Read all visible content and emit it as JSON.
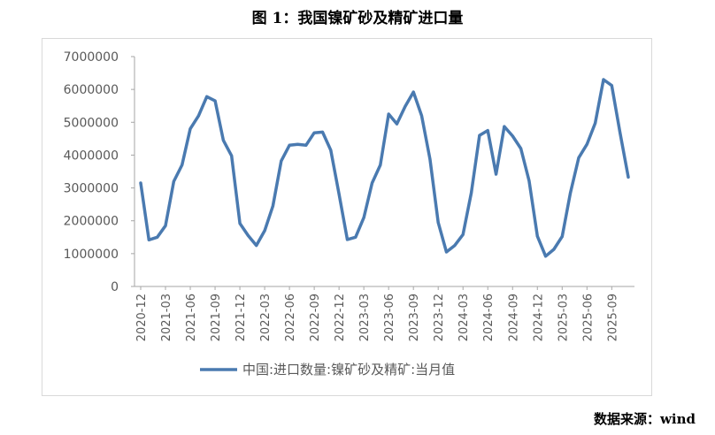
{
  "title": "图 1：我国镍矿砂及精矿进口量",
  "source": "数据来源：wind",
  "chart_data": {
    "type": "line",
    "title": "图 1：我国镍矿砂及精矿进口量",
    "xlabel": "",
    "ylabel": "",
    "ylim": [
      0,
      7000000
    ],
    "yticks": [
      "0",
      "1000000",
      "2000000",
      "3000000",
      "4000000",
      "5000000",
      "6000000",
      "7000000"
    ],
    "xticks": [
      "2020-12",
      "2021-03",
      "2021-06",
      "2021-09",
      "2021-12",
      "2022-03",
      "2022-06",
      "2022-09",
      "2022-12",
      "2023-03",
      "2023-06",
      "2023-09",
      "2023-12",
      "2024-03",
      "2024-06",
      "2024-09",
      "2024-12",
      "2025-03",
      "2025-06",
      "2025-09"
    ],
    "grid": false,
    "legend": "bottom",
    "color": "#4a7ab0",
    "series": [
      {
        "name": "中国:进口数量:镍矿砂及精矿:当月值",
        "x": [
          "2020-12",
          "2021-01",
          "2021-02",
          "2021-03",
          "2021-04",
          "2021-05",
          "2021-06",
          "2021-07",
          "2021-08",
          "2021-09",
          "2021-10",
          "2021-11",
          "2021-12",
          "2022-01",
          "2022-02",
          "2022-03",
          "2022-04",
          "2022-05",
          "2022-06",
          "2022-07",
          "2022-08",
          "2022-09",
          "2022-10",
          "2022-11",
          "2022-12",
          "2023-01",
          "2023-02",
          "2023-03",
          "2023-04",
          "2023-05",
          "2023-06",
          "2023-07",
          "2023-08",
          "2023-09",
          "2023-10",
          "2023-11",
          "2023-12",
          "2024-01",
          "2024-02",
          "2024-03",
          "2024-04",
          "2024-05",
          "2024-06",
          "2024-07",
          "2024-08",
          "2024-09",
          "2024-10",
          "2024-11",
          "2024-12",
          "2025-01",
          "2025-02",
          "2025-03",
          "2025-04",
          "2025-05",
          "2025-06",
          "2025-07",
          "2025-08",
          "2025-09",
          "2025-10",
          "2025-11"
        ],
        "values": [
          3150000,
          1420000,
          1500000,
          1850000,
          3200000,
          3700000,
          4800000,
          5200000,
          5780000,
          5650000,
          4450000,
          3980000,
          1920000,
          1550000,
          1250000,
          1700000,
          2450000,
          3820000,
          4300000,
          4330000,
          4300000,
          4680000,
          4700000,
          4150000,
          2820000,
          1430000,
          1500000,
          2100000,
          3150000,
          3700000,
          5250000,
          4950000,
          5480000,
          5920000,
          5200000,
          3880000,
          1950000,
          1050000,
          1250000,
          1580000,
          2850000,
          4600000,
          4750000,
          3420000,
          4870000,
          4580000,
          4200000,
          3220000,
          1530000,
          920000,
          1130000,
          1520000,
          2850000,
          3920000,
          4330000,
          4970000,
          6300000,
          6120000,
          4680000,
          3330000
        ]
      }
    ]
  }
}
